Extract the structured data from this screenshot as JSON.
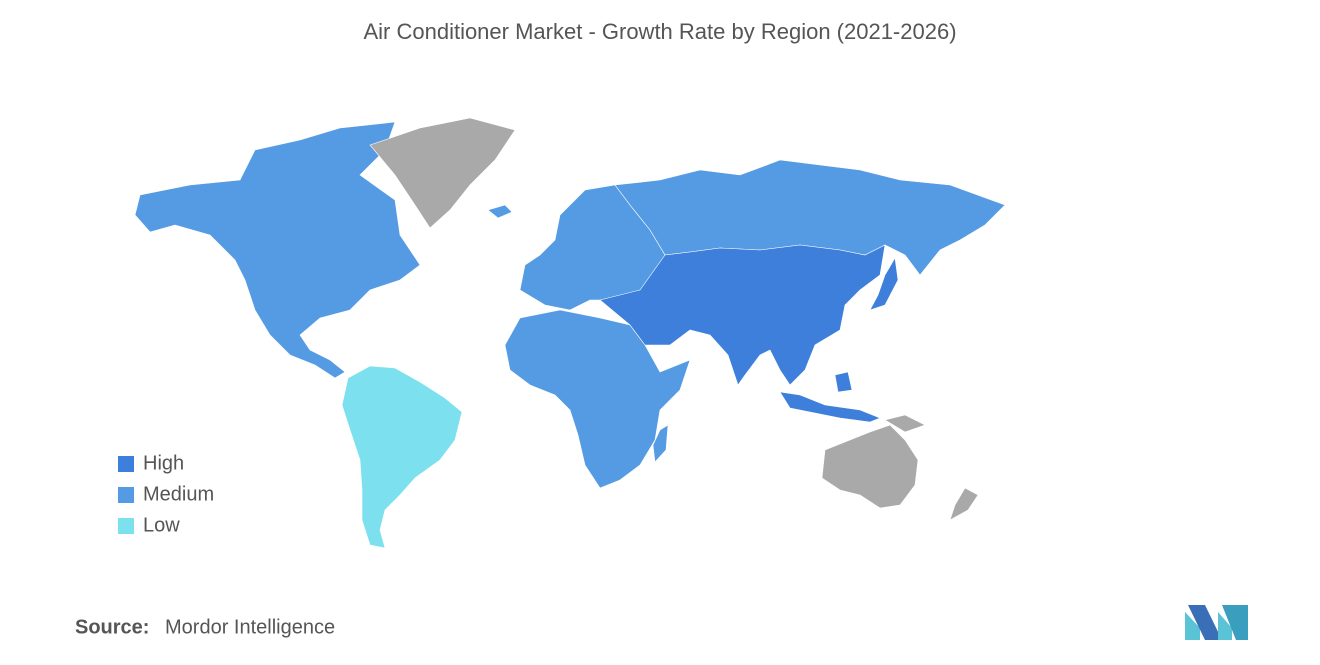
{
  "title": "Air Conditioner Market - Growth Rate by Region (2021-2026)",
  "legend": [
    {
      "label": "High",
      "color": "#3d7fdb"
    },
    {
      "label": "Medium",
      "color": "#559be3"
    },
    {
      "label": "Low",
      "color": "#7ce0ef"
    }
  ],
  "source": {
    "label": "Source:",
    "text": "Mordor Intelligence"
  }
}
